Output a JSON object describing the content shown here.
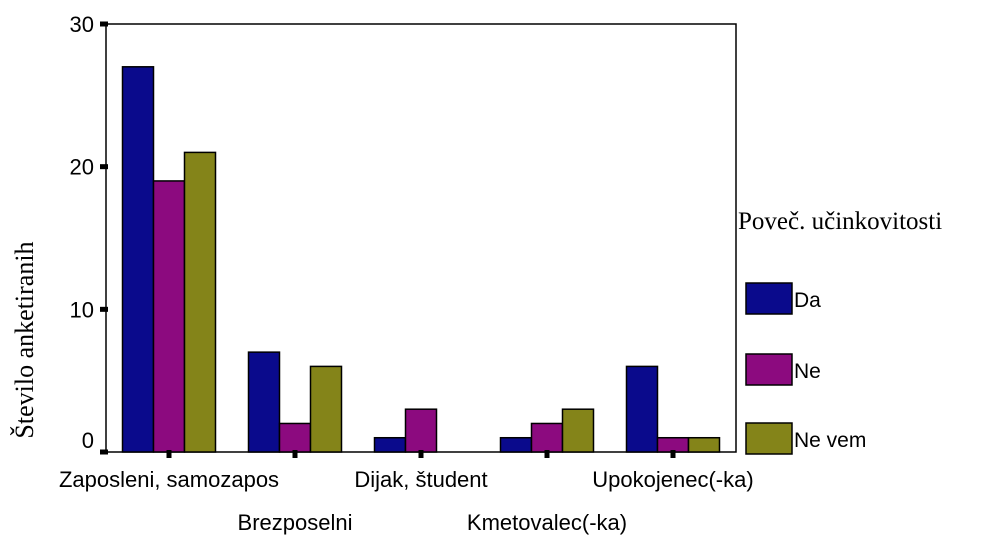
{
  "chart_data": {
    "type": "bar",
    "title": "",
    "xlabel": "",
    "ylabel": "Število anketiranih",
    "ylim": [
      0,
      30
    ],
    "yticks": [
      0,
      10,
      20,
      30
    ],
    "categories": [
      "Zaposleni, samozapos",
      "Brezposelni",
      "Dijak, študent",
      "Kmetovalec(-ka)",
      "Upokojenec(-ka)"
    ],
    "legend_title": "Poveč. učinkovitosti",
    "legend_position": "right",
    "series": [
      {
        "name": "Da",
        "color": "#0a0a8c",
        "values": [
          27,
          7,
          1,
          1,
          6
        ]
      },
      {
        "name": "Ne",
        "color": "#8c0a7f",
        "values": [
          19,
          2,
          3,
          2,
          1
        ]
      },
      {
        "name": "Ne vem",
        "color": "#848419",
        "values": [
          21,
          6,
          0,
          3,
          1
        ]
      }
    ]
  }
}
